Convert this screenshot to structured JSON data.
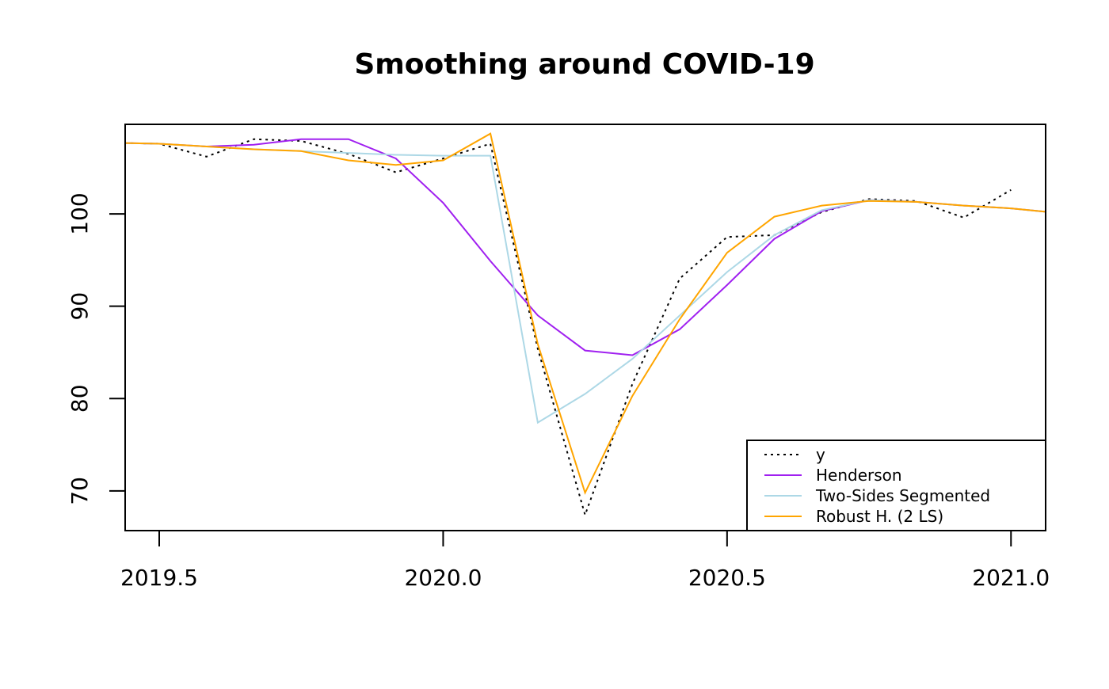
{
  "chart_data": {
    "type": "line",
    "title": "Smoothing around COVID-19",
    "xlabel": "",
    "ylabel": "",
    "xlim": [
      2019.44,
      2021.061
    ],
    "ylim": [
      65.7,
      109.7
    ],
    "x_ticks": [
      2019.5,
      2020.0,
      2020.5,
      2021.0
    ],
    "x_tick_labels": [
      "2019.5",
      "2020.0",
      "2020.5",
      "2021.0"
    ],
    "y_ticks": [
      70,
      80,
      90,
      100
    ],
    "y_tick_labels": [
      "70",
      "80",
      "90",
      "100"
    ],
    "grid": false,
    "legend_position": "bottom-right",
    "x": [
      2019.4167,
      2019.5,
      2019.5833,
      2019.6667,
      2019.75,
      2019.8333,
      2019.9167,
      2020.0,
      2020.0833,
      2020.1667,
      2020.25,
      2020.3333,
      2020.4167,
      2020.5,
      2020.5833,
      2020.6667,
      2020.75,
      2020.8333,
      2020.9167,
      2021.0,
      2021.0833
    ],
    "series": [
      {
        "name": "y",
        "color": "#000000",
        "dash": "dotted",
        "values": [
          107.7,
          107.6,
          106.2,
          108.1,
          107.9,
          106.5,
          104.5,
          106.0,
          107.6,
          85.4,
          67.4,
          81.6,
          93.0,
          97.5,
          97.7,
          100.2,
          101.6,
          101.4,
          99.6,
          102.6,
          null
        ]
      },
      {
        "name": "Henderson",
        "color": "#a020f0",
        "dash": "solid",
        "values": [
          107.7,
          107.6,
          107.3,
          107.5,
          108.1,
          108.1,
          106.0,
          101.2,
          94.9,
          89.0,
          85.2,
          84.7,
          87.5,
          92.3,
          97.3,
          100.3,
          101.5,
          101.3,
          100.9,
          100.6,
          100.1
        ]
      },
      {
        "name": "Two-Sides Segmented",
        "color": "#add8e6",
        "dash": "solid",
        "values": [
          107.7,
          107.6,
          107.3,
          107.0,
          106.8,
          106.6,
          106.4,
          106.3,
          106.3,
          77.4,
          80.5,
          84.3,
          89.0,
          93.7,
          97.7,
          100.4,
          101.5,
          101.3,
          100.9,
          100.6,
          100.1
        ]
      },
      {
        "name": "Robust H. (2 LS)",
        "color": "#ffa500",
        "dash": "solid",
        "values": [
          107.7,
          107.6,
          107.3,
          107.0,
          106.8,
          105.8,
          105.3,
          105.8,
          108.7,
          85.9,
          69.8,
          80.3,
          88.6,
          95.8,
          99.7,
          100.9,
          101.4,
          101.3,
          100.9,
          100.6,
          100.1
        ]
      }
    ]
  }
}
